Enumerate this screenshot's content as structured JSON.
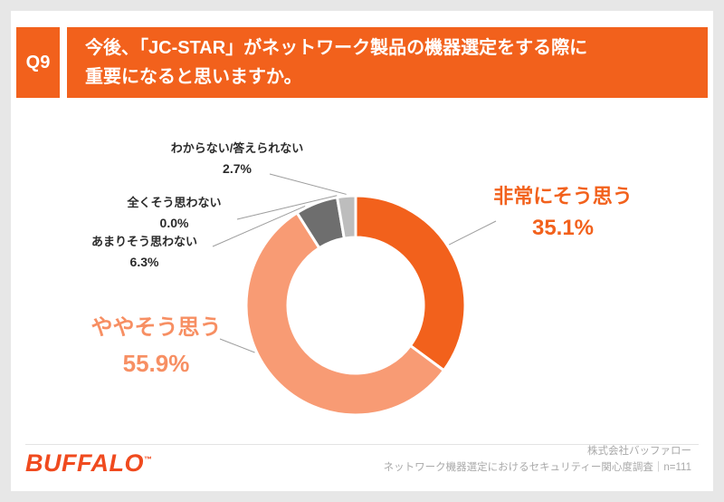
{
  "page": {
    "q_label": "Q9",
    "title_line1": "今後、「JC-STAR」がネットワーク製品の機器選定をする際に",
    "title_line2": "重要になると思いますか。"
  },
  "chart_data": {
    "type": "pie",
    "subtype": "donut",
    "start_angle_deg": 0,
    "direction": "clockwise",
    "unit": "%",
    "segments": [
      {
        "name": "strongly-agree",
        "label": "非常にそう思う",
        "value": 35.1,
        "display": "35.1%",
        "color": "#F2611C"
      },
      {
        "name": "somewhat-agree",
        "label": "ややそう思う",
        "value": 55.9,
        "display": "55.9%",
        "color": "#F89B74"
      },
      {
        "name": "not-really",
        "label": "あまりそう思わない",
        "value": 6.3,
        "display": "6.3%",
        "color": "#6E6E6E"
      },
      {
        "name": "not-at-all",
        "label": "全くそう思わない",
        "value": 0.0,
        "display": "0.0%",
        "color": "#4D4D4D"
      },
      {
        "name": "dont-know",
        "label": "わからない/答えられない",
        "value": 2.7,
        "display": "2.7%",
        "color": "#BDBDBD"
      }
    ],
    "label_colors": {
      "strongly_agree_text": "#F2611C",
      "somewhat_agree_text": "#F78F63",
      "callout_text": "#2B2B2B"
    },
    "legend_position": "callouts",
    "grid": false
  },
  "footer": {
    "logo_text": "BUFFALO",
    "logo_tm": "™",
    "credit_line1": "株式会社バッファロー",
    "credit_line2": "ネットワーク機器選定におけるセキュリティー関心度調査｜n=111"
  }
}
